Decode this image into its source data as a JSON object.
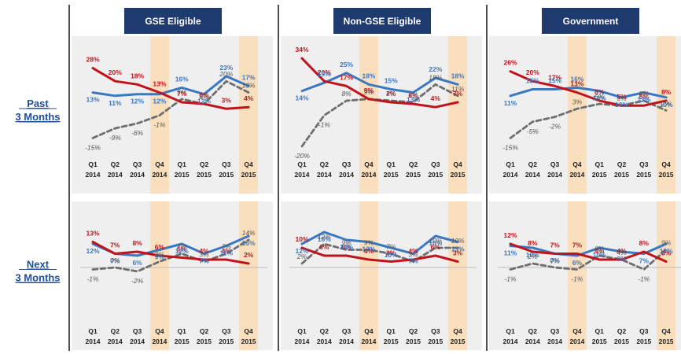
{
  "headers": [
    "GSE Eligible",
    "Non-GSE Eligible",
    "Government"
  ],
  "row_labels": [
    {
      "line1": "Past",
      "line2": "3 Months"
    },
    {
      "line1": "Next",
      "line2": "3 Months"
    }
  ],
  "colors": {
    "header_bg": "#1f3a6e",
    "panel_bg": "#efefef",
    "highlight": "#f9dfbd",
    "red": "#c0141c",
    "blue": "#3b78c2",
    "gray": "#6e6e6e",
    "divider": "#222222"
  },
  "chart_data": {
    "type": "line",
    "highlighted_quarters": [
      "Q4 2014",
      "Q4 2015"
    ],
    "panels": [
      {
        "row": "Past 3 Months",
        "column": "GSE Eligible",
        "x_quarter": [
          "Q1",
          "Q2",
          "Q3",
          "Q4",
          "Q1",
          "Q2",
          "Q3",
          "Q4"
        ],
        "x_year": [
          "2014",
          "2014",
          "2014",
          "2014",
          "2015",
          "2015",
          "2015",
          "2015"
        ],
        "series": [
          {
            "color": "red",
            "style": "solid",
            "values": [
              28,
              20,
              18,
              13,
              7,
              6,
              3,
              4
            ],
            "labels": [
              "28%",
              "20%",
              "18%",
              "13%",
              "7%",
              "6%",
              "3%",
              "4%"
            ]
          },
          {
            "color": "blue",
            "style": "solid",
            "values": [
              13,
              11,
              12,
              12,
              16,
              12,
              23,
              17
            ],
            "labels": [
              "13%",
              "11%",
              "12%",
              "12%",
              "16%",
              "12%",
              "23%",
              "17%"
            ]
          },
          {
            "color": "gray",
            "style": "dashed",
            "values": [
              -15,
              -9,
              -6,
              -1,
              9,
              6,
              20,
              13
            ],
            "labels": [
              "-15%",
              "-9%",
              "-6%",
              "-1%",
              "9%",
              "6%",
              "20%",
              "13%"
            ]
          }
        ]
      },
      {
        "row": "Past 3 Months",
        "column": "Non-GSE Eligible",
        "x_quarter": [
          "Q1",
          "Q2",
          "Q3",
          "Q4",
          "Q1",
          "Q2",
          "Q3",
          "Q4"
        ],
        "x_year": [
          "2014",
          "2014",
          "2014",
          "2014",
          "2015",
          "2015",
          "2015",
          "2015"
        ],
        "series": [
          {
            "color": "red",
            "style": "solid",
            "values": [
              34,
              20,
              17,
              9,
              7,
              6,
              4,
              7
            ],
            "labels": [
              "34%",
              "20%",
              "17%",
              "9%",
              "7%",
              "6%",
              "4%",
              "7%"
            ]
          },
          {
            "color": "blue",
            "style": "solid",
            "values": [
              14,
              19,
              25,
              18,
              15,
              13,
              22,
              18
            ],
            "labels": [
              "14%",
              "19%",
              "25%",
              "18%",
              "15%",
              "13%",
              "22%",
              "18%"
            ]
          },
          {
            "color": "gray",
            "style": "dashed",
            "values": [
              -20,
              -1,
              8,
              9,
              8,
              7,
              18,
              11
            ],
            "labels": [
              "-20%",
              "-1%",
              "8%",
              "9%",
              "8%",
              "7%",
              "18%",
              "11%"
            ]
          }
        ]
      },
      {
        "row": "Past 3 Months",
        "column": "Government",
        "x_quarter": [
          "Q1",
          "Q2",
          "Q3",
          "Q4",
          "Q1",
          "Q2",
          "Q3",
          "Q4"
        ],
        "x_year": [
          "2014",
          "2014",
          "2014",
          "2014",
          "2015",
          "2015",
          "2015",
          "2015"
        ],
        "series": [
          {
            "color": "red",
            "style": "solid",
            "values": [
              26,
              20,
              17,
              13,
              8,
              5,
              5,
              8
            ],
            "labels": [
              "26%",
              "20%",
              "17%",
              "13%",
              "8%",
              "5%",
              "5%",
              "8%"
            ]
          },
          {
            "color": "blue",
            "style": "solid",
            "values": [
              11,
              15,
              15,
              16,
              14,
              10,
              13,
              10
            ],
            "labels": [
              "11%",
              "15%",
              "15%",
              "16%",
              "14%",
              "10%",
              "13%",
              "10%"
            ]
          },
          {
            "color": "gray",
            "style": "dashed",
            "values": [
              -15,
              -5,
              -2,
              3,
              6,
              5,
              8,
              2
            ],
            "labels": [
              "-15%",
              "-5%",
              "-2%",
              "3%",
              "6%",
              "5%",
              "8%",
              "2%"
            ]
          }
        ]
      },
      {
        "row": "Next 3 Months",
        "column": "GSE Eligible",
        "x_quarter": [
          "Q1",
          "Q2",
          "Q3",
          "Q4",
          "Q1",
          "Q2",
          "Q3",
          "Q4"
        ],
        "x_year": [
          "2014",
          "2014",
          "2014",
          "2014",
          "2015",
          "2015",
          "2015",
          "2015"
        ],
        "series": [
          {
            "color": "red",
            "style": "solid",
            "values": [
              13,
              7,
              8,
              6,
              5,
              4,
              4,
              2
            ],
            "labels": [
              "13%",
              "7%",
              "8%",
              "6%",
              "5%",
              "4%",
              "4%",
              "2%"
            ]
          },
          {
            "color": "blue",
            "style": "solid",
            "values": [
              12,
              7,
              6,
              9,
              12,
              7,
              11,
              16
            ],
            "labels": [
              "12%",
              "7%",
              "6%",
              "9%",
              "12%",
              "7%",
              "11%",
              "16%"
            ]
          },
          {
            "color": "gray",
            "style": "dashed",
            "values": [
              -1,
              0,
              -2,
              3,
              7,
              3,
              7,
              14
            ],
            "labels": [
              "-1%",
              "0%",
              "-2%",
              "3%",
              "7%",
              "3%",
              "7%",
              "14%"
            ]
          }
        ]
      },
      {
        "row": "Next 3 Months",
        "column": "Non-GSE Eligible",
        "x_quarter": [
          "Q1",
          "Q2",
          "Q3",
          "Q4",
          "Q1",
          "Q2",
          "Q3",
          "Q4"
        ],
        "x_year": [
          "2014",
          "2014",
          "2014",
          "2014",
          "2015",
          "2015",
          "2015",
          "2015"
        ],
        "series": [
          {
            "color": "red",
            "style": "solid",
            "values": [
              10,
              6,
              6,
              4,
              3,
              4,
              6,
              3
            ],
            "labels": [
              "10%",
              "6%",
              "6%",
              "4%",
              "3%",
              "4%",
              "6%",
              "3%"
            ]
          },
          {
            "color": "blue",
            "style": "solid",
            "values": [
              12,
              18,
              14,
              13,
              10,
              7,
              16,
              13
            ],
            "labels": [
              "12%",
              "18%",
              "14%",
              "13%",
              "10%",
              "7%",
              "16%",
              "13%"
            ]
          },
          {
            "color": "gray",
            "style": "dashed",
            "values": [
              2,
              12,
              9,
              9,
              7,
              3,
              10,
              10
            ],
            "labels": [
              "2%",
              "12%",
              "9%",
              "9%",
              "7%",
              "3%",
              "10%",
              "10%"
            ]
          }
        ]
      },
      {
        "row": "Next 3 Months",
        "column": "Government",
        "x_quarter": [
          "Q1",
          "Q2",
          "Q3",
          "Q4",
          "Q1",
          "Q2",
          "Q3",
          "Q4"
        ],
        "x_year": [
          "2014",
          "2014",
          "2014",
          "2014",
          "2015",
          "2015",
          "2015",
          "2015"
        ],
        "series": [
          {
            "color": "red",
            "style": "solid",
            "values": [
              12,
              8,
              7,
              7,
              4,
              4,
              8,
              3
            ],
            "labels": [
              "12%",
              "8%",
              "7%",
              "7%",
              "4%",
              "4%",
              "8%",
              "3%"
            ]
          },
          {
            "color": "blue",
            "style": "solid",
            "values": [
              11,
              10,
              7,
              6,
              10,
              8,
              7,
              12
            ],
            "labels": [
              "11%",
              "10%",
              "7%",
              "6%",
              "10%",
              "8%",
              "7%",
              "12%"
            ]
          },
          {
            "color": "gray",
            "style": "dashed",
            "values": [
              -1,
              2,
              0,
              -1,
              6,
              4,
              -1,
              9
            ],
            "labels": [
              "-1%",
              "2%",
              "0%",
              "-1%",
              "6%",
              "4%",
              "-1%",
              "9%"
            ]
          }
        ]
      }
    ]
  }
}
